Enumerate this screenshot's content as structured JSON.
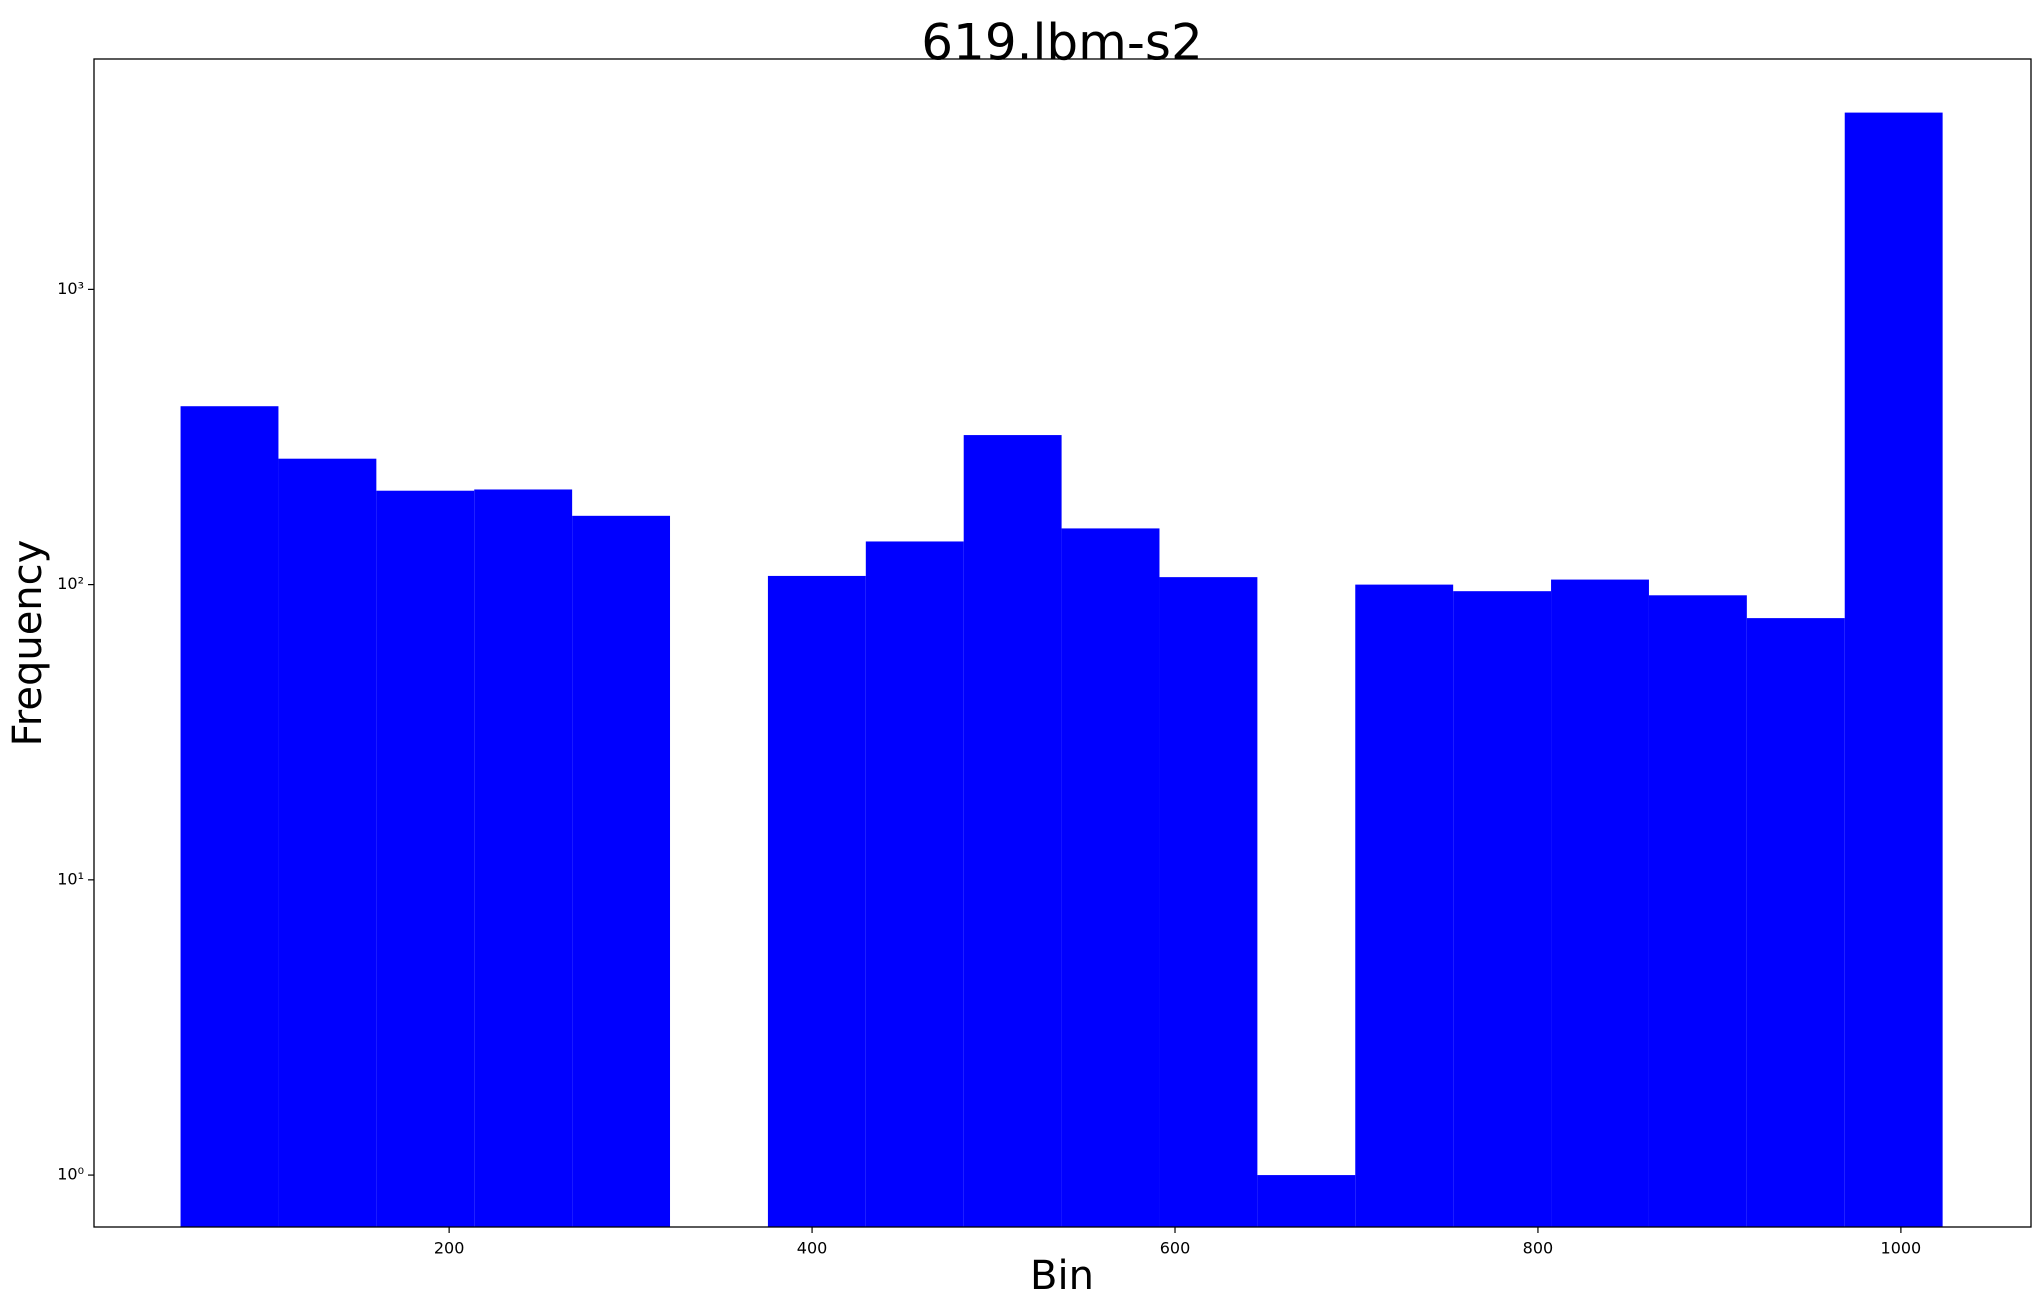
{
  "chart_data": {
    "type": "histogram",
    "title": "619.lbm-s2",
    "xlabel": "Bin",
    "ylabel": "Frequency",
    "bins": [
      52,
      105.94,
      159.89,
      213.83,
      267.78,
      321.72,
      375.67,
      429.61,
      483.56,
      537.5,
      591.44,
      645.39,
      699.33,
      753.28,
      807.22,
      861.17,
      915.11,
      969.06,
      1023
    ],
    "values": [
      402,
      267,
      208,
      210,
      171,
      0,
      107,
      140,
      321,
      155,
      106,
      1,
      100,
      95,
      104,
      92,
      77,
      3970
    ],
    "color": "#0000ff",
    "ylog": true,
    "xlim": [
      4.3,
      1071.7
    ],
    "ylim": [
      0.667,
      6030
    ],
    "xticks": [
      200,
      400,
      600,
      800,
      1000
    ],
    "yticks": [
      {
        "value": 1,
        "label": "10⁰"
      },
      {
        "value": 10,
        "label": "10¹"
      },
      {
        "value": 100,
        "label": "10²"
      },
      {
        "value": 1000,
        "label": "10³"
      }
    ]
  }
}
